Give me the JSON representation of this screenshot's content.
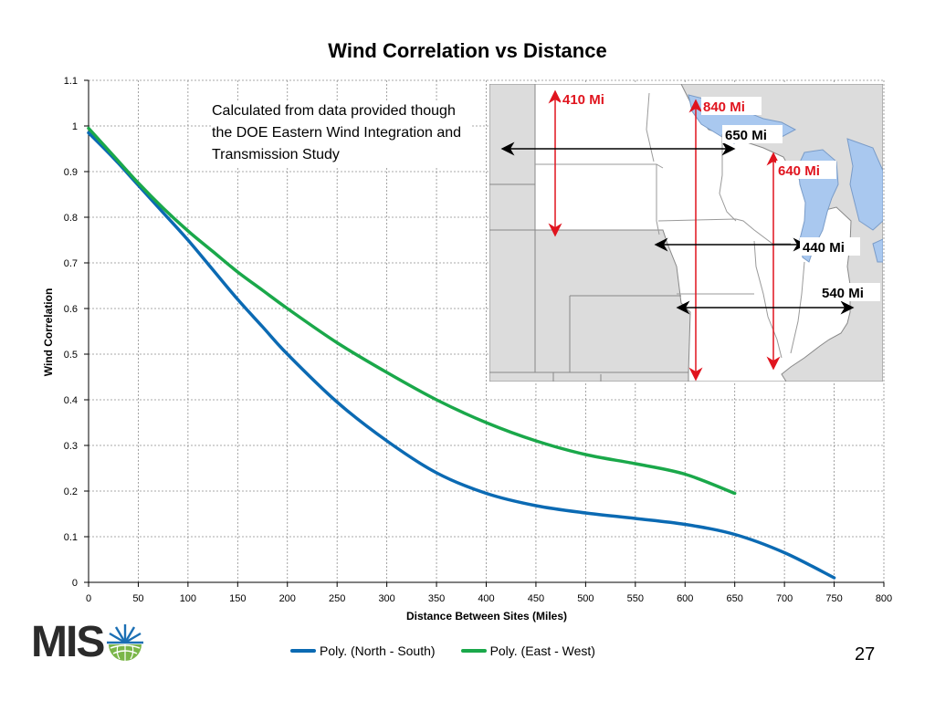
{
  "title": "Wind Correlation vs Distance",
  "note": "Calculated from data provided though the DOE Eastern Wind Integration and Transmission Study",
  "page_number": "27",
  "logo": {
    "text": "MIS"
  },
  "colors": {
    "north_south": "#0b6ab3",
    "east_west": "#1aa84a",
    "map_red": "#e0141e",
    "map_water": "#a9c8ef",
    "map_land": "#dcdcdc"
  },
  "chart_data": {
    "type": "line",
    "title": "Wind Correlation vs Distance",
    "xlabel": "Distance Between Sites (Miles)",
    "ylabel": "Wind Correlation",
    "xlim": [
      0,
      800
    ],
    "ylim": [
      0,
      1.1
    ],
    "x_ticks": [
      "0",
      "50",
      "100",
      "150",
      "200",
      "250",
      "300",
      "350",
      "400",
      "450",
      "500",
      "550",
      "600",
      "650",
      "700",
      "750",
      "800"
    ],
    "y_ticks": [
      "0",
      "0.1",
      "0.2",
      "0.3",
      "0.4",
      "0.5",
      "0.6",
      "0.7",
      "0.8",
      "0.9",
      "1",
      "1.1"
    ],
    "grid": true,
    "legend_position": "bottom",
    "series": [
      {
        "name": "Poly. (North - South)",
        "color": "#0b6ab3",
        "x": [
          0,
          25,
          50,
          75,
          100,
          125,
          150,
          175,
          200,
          250,
          300,
          350,
          400,
          450,
          500,
          550,
          600,
          650,
          700,
          750
        ],
        "y": [
          0.985,
          0.93,
          0.87,
          0.81,
          0.75,
          0.685,
          0.62,
          0.56,
          0.5,
          0.395,
          0.31,
          0.24,
          0.195,
          0.168,
          0.152,
          0.14,
          0.127,
          0.105,
          0.065,
          0.01
        ]
      },
      {
        "name": "Poly. (East - West)",
        "color": "#1aa84a",
        "x": [
          0,
          25,
          50,
          75,
          100,
          125,
          150,
          175,
          200,
          250,
          300,
          350,
          400,
          450,
          500,
          550,
          600,
          650
        ],
        "y": [
          0.995,
          0.935,
          0.875,
          0.82,
          0.77,
          0.725,
          0.68,
          0.64,
          0.6,
          0.525,
          0.46,
          0.4,
          0.35,
          0.31,
          0.28,
          0.26,
          0.237,
          0.195
        ]
      }
    ]
  },
  "map": {
    "labels": {
      "d410": "410 Mi",
      "d840": "840 Mi",
      "d650": "650 Mi",
      "d640": "640 Mi",
      "d440": "440 Mi",
      "d540": "540 Mi"
    }
  }
}
